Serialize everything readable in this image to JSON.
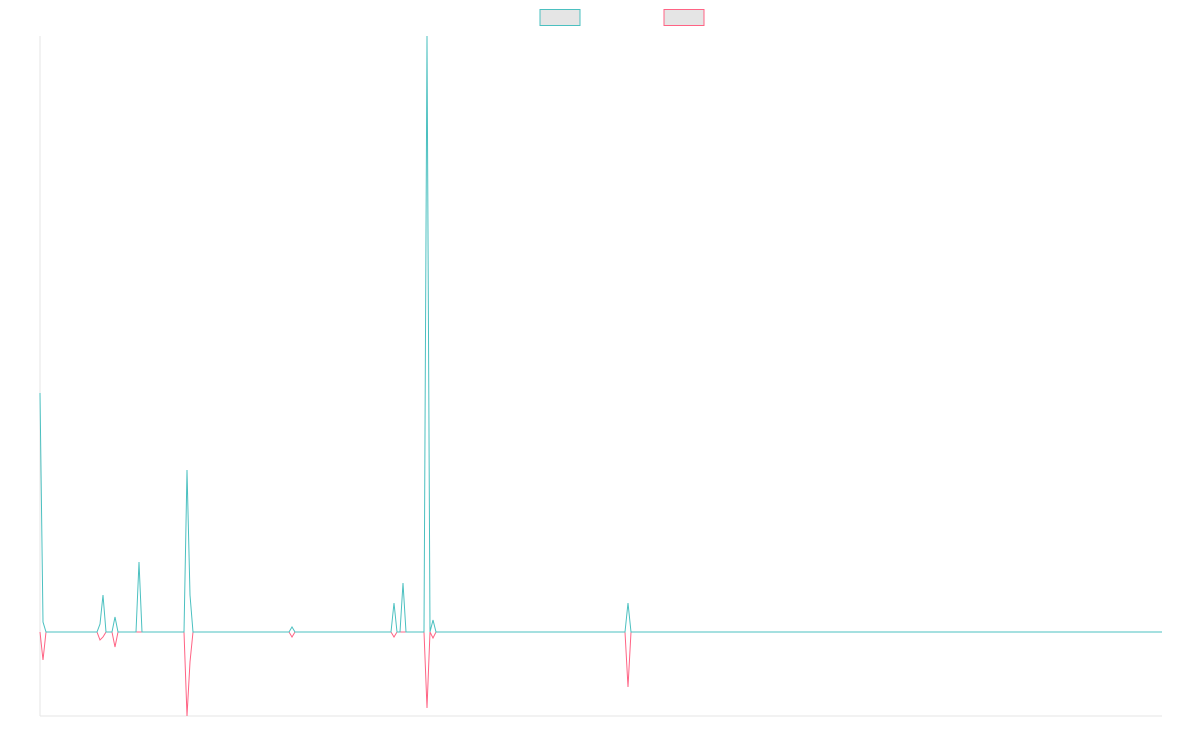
{
  "chart_data": {
    "type": "line",
    "x": [
      0,
      1,
      2,
      19,
      20,
      21,
      22,
      24,
      25,
      26,
      32,
      33,
      34,
      48,
      49,
      50,
      51,
      83,
      84,
      85,
      117,
      118,
      119,
      120,
      121,
      122,
      128,
      129,
      130,
      131,
      132,
      195,
      196,
      197,
      374
    ],
    "series": [
      {
        "color": "#ff6384",
        "values": [
          0,
          -28,
          0,
          0,
          -8,
          -5,
          0,
          0,
          -15,
          0,
          0,
          0,
          0,
          0,
          -84,
          -30,
          0,
          0,
          -5,
          0,
          0,
          -5,
          0,
          0,
          0,
          0,
          0,
          -76,
          0,
          -6,
          0,
          0,
          -55,
          0,
          0
        ]
      },
      {
        "color": "#4bc0c0",
        "values": [
          239,
          10,
          0,
          0,
          8,
          37,
          0,
          0,
          15,
          0,
          0,
          70,
          0,
          0,
          162,
          37,
          0,
          0,
          5,
          0,
          0,
          29,
          0,
          0,
          49,
          0,
          0,
          596,
          0,
          12,
          0,
          0,
          29,
          0,
          0
        ]
      }
    ],
    "xlim": [
      0,
      374
    ],
    "ylim": [
      -84,
      596
    ],
    "legend": "top"
  }
}
